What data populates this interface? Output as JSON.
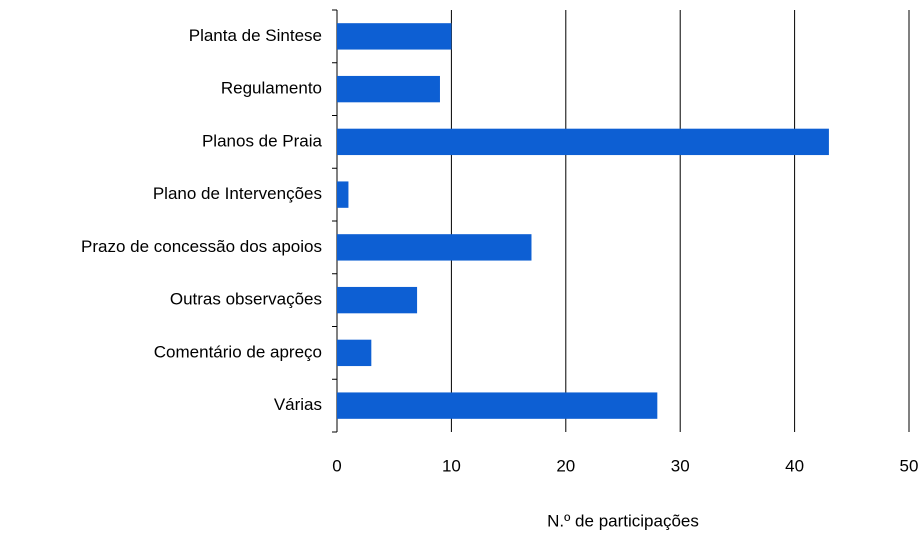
{
  "chart_data": {
    "type": "bar",
    "orientation": "horizontal",
    "categories": [
      "Planta de Sintese",
      "Regulamento",
      "Planos de Praia",
      "Plano de Intervenções",
      "Prazo de concessão dos apoios",
      "Outras observações",
      "Comentário de apreço",
      "Várias"
    ],
    "values": [
      10,
      9,
      43,
      1,
      17,
      7,
      3,
      28
    ],
    "color": "#0d5fd3",
    "xlabel": "N.º de participações",
    "xlim": [
      0,
      50
    ],
    "xticks": [
      0,
      10,
      20,
      30,
      40,
      50
    ],
    "grid": true
  }
}
